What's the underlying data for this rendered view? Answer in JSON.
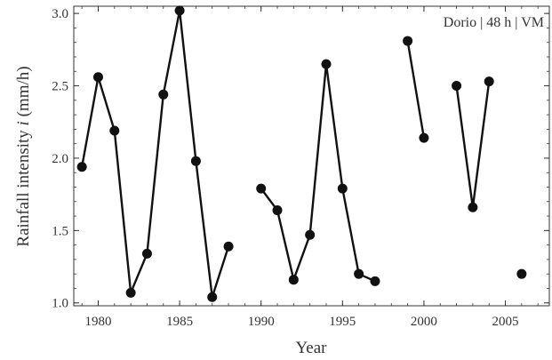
{
  "chart_data": {
    "type": "line",
    "annotation": "Dorio | 48 h | VM",
    "xlabel": "Year",
    "ylabel_prefix": "Rainfall intensity ",
    "ylabel_var": "i",
    "ylabel_suffix": " (mm/h)",
    "xlim": [
      1978.5,
      2007.7
    ],
    "ylim": [
      0.98,
      3.05
    ],
    "xticks": [
      1980,
      1985,
      1990,
      1995,
      2000,
      2005
    ],
    "yticks": [
      1.0,
      1.5,
      2.0,
      2.5,
      3.0
    ],
    "ytick_labels": [
      "1.0",
      "1.5",
      "2.0",
      "2.5",
      "3.0"
    ],
    "xtick_labels": [
      "1980",
      "1985",
      "1990",
      "1995",
      "2000",
      "2005"
    ],
    "segments": [
      [
        [
          1979,
          1.94
        ],
        [
          1980,
          2.56
        ],
        [
          1981,
          2.19
        ],
        [
          1982,
          1.07
        ],
        [
          1983,
          1.34
        ],
        [
          1984,
          2.44
        ],
        [
          1985,
          3.02
        ],
        [
          1986,
          1.98
        ],
        [
          1987,
          1.04
        ],
        [
          1988,
          1.39
        ]
      ],
      [
        [
          1990,
          1.79
        ],
        [
          1991,
          1.64
        ],
        [
          1992,
          1.16
        ],
        [
          1993,
          1.47
        ],
        [
          1994,
          2.65
        ],
        [
          1995,
          1.79
        ],
        [
          1996,
          1.2
        ],
        [
          1997,
          1.15
        ]
      ],
      [
        [
          1999,
          2.81
        ],
        [
          2000,
          2.14
        ]
      ],
      [
        [
          2002,
          2.5
        ],
        [
          2003,
          1.66
        ],
        [
          2004,
          2.53
        ]
      ],
      [
        [
          2006,
          1.2
        ]
      ]
    ],
    "colors": {
      "line": "#111111",
      "marker": "#111111",
      "axis": "#333333"
    }
  }
}
